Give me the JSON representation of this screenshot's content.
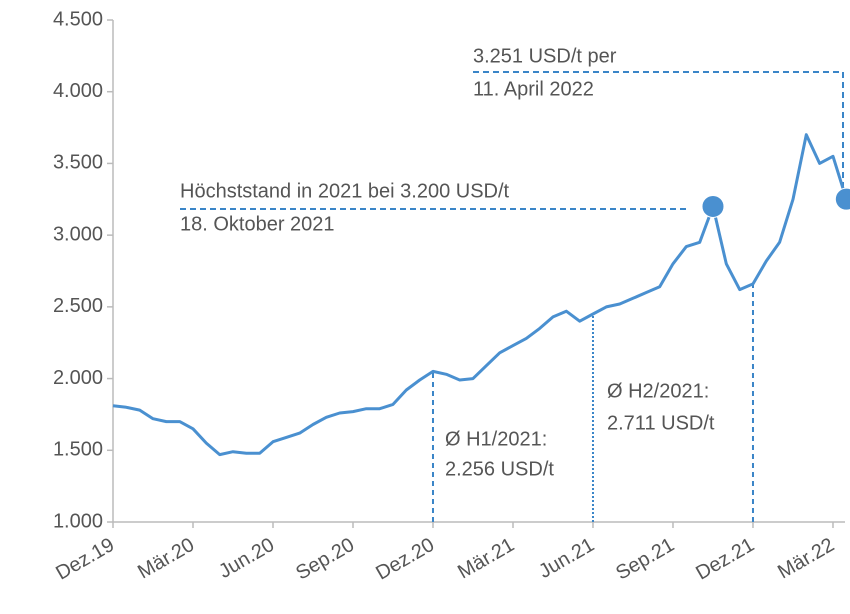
{
  "chart_data": {
    "type": "line",
    "categories": [
      "Dez.19",
      null,
      null,
      null,
      null,
      null,
      "Mär.20",
      null,
      null,
      null,
      null,
      null,
      "Jun.20",
      null,
      null,
      null,
      null,
      null,
      "Sep.20",
      null,
      null,
      null,
      null,
      null,
      "Dez.20",
      null,
      null,
      null,
      null,
      null,
      "Mär.21",
      null,
      null,
      null,
      null,
      null,
      "Jun.21",
      null,
      null,
      null,
      null,
      null,
      "Sep.21",
      null,
      null,
      null,
      null,
      null,
      "Dez.21",
      null,
      null,
      null,
      null,
      null,
      "Mär.22",
      null
    ],
    "series": [
      {
        "color": "#4a90d0",
        "values": [
          1810,
          1800,
          1780,
          1720,
          1700,
          1700,
          1650,
          1550,
          1470,
          1490,
          1480,
          1480,
          1560,
          1590,
          1620,
          1680,
          1730,
          1760,
          1770,
          1790,
          1790,
          1820,
          1920,
          1990,
          2050,
          2030,
          1990,
          2000,
          2090,
          2180,
          2230,
          2280,
          2350,
          2430,
          2470,
          2400,
          2450,
          2500,
          2520,
          2560,
          2600,
          2640,
          2800,
          2920,
          2950,
          3200,
          2800,
          2620,
          2660,
          2820,
          2950,
          3250,
          3700,
          3500,
          3550,
          3251
        ]
      }
    ],
    "ylim": [
      1000,
      4500
    ],
    "yticks": [
      {
        "value": 1000,
        "label": "1.000"
      },
      {
        "value": 1500,
        "label": "1.500"
      },
      {
        "value": 2000,
        "label": "2.000"
      },
      {
        "value": 2500,
        "label": "2.500"
      },
      {
        "value": 3000,
        "label": "3.000"
      },
      {
        "value": 3500,
        "label": "3.500"
      },
      {
        "value": 4000,
        "label": "4.000"
      },
      {
        "value": 4500,
        "label": "4.500"
      }
    ],
    "annotations": [
      "3.251 USD/t per",
      "11. April 2022",
      "Höchststand in 2021 bei 3.200 USD/t",
      "18. Oktober 2021",
      "Ø H1/2021:",
      "2.256 USD/t",
      "Ø H2/2021:",
      "2.711 USD/t"
    ]
  }
}
